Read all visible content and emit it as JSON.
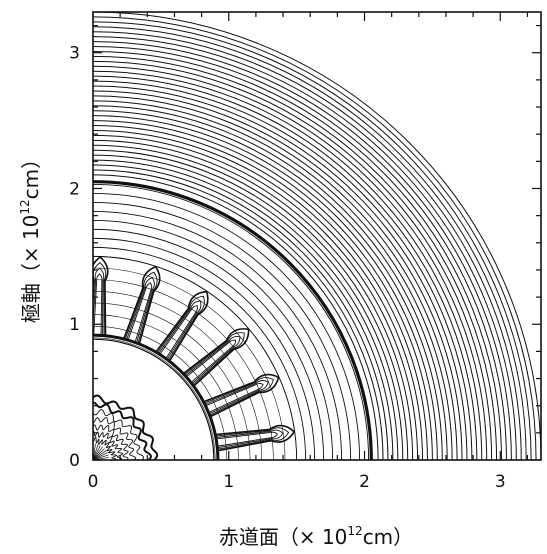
{
  "chart_data": {
    "type": "contour",
    "xlabel_parts": {
      "pre": "赤道面（× 10",
      "exp": "12",
      "post": "cm）"
    },
    "ylabel_parts": {
      "pre": "極軸（× 10",
      "exp": "12",
      "post": "cm）"
    },
    "xlim": [
      0,
      3.3
    ],
    "ylim": [
      0,
      3.3
    ],
    "xticks": [
      0,
      1,
      2,
      3
    ],
    "yticks": [
      0,
      1,
      2,
      3
    ],
    "xtick_labels": [
      "0",
      "1",
      "2",
      "3"
    ],
    "ytick_labels": [
      "0",
      "1",
      "2",
      "3"
    ],
    "minor_tick_step": 0.2,
    "outer_contours": {
      "r_start": 2.1,
      "r_end": 3.3,
      "count": 34
    },
    "shock_front_radius": 2.05,
    "inner_shell_contours": {
      "r_start": 1.5,
      "r_end": 2.03,
      "count": 9
    },
    "mid_contours": {
      "r_start": 0.9,
      "r_end": 1.5,
      "count": 8
    },
    "plumes": {
      "base_radius": 0.92,
      "tip_radius": 1.42,
      "angles_deg": [
        8,
        24,
        40,
        56,
        72,
        88
      ]
    },
    "core_radius": 0.45,
    "line_color": "#111111"
  }
}
